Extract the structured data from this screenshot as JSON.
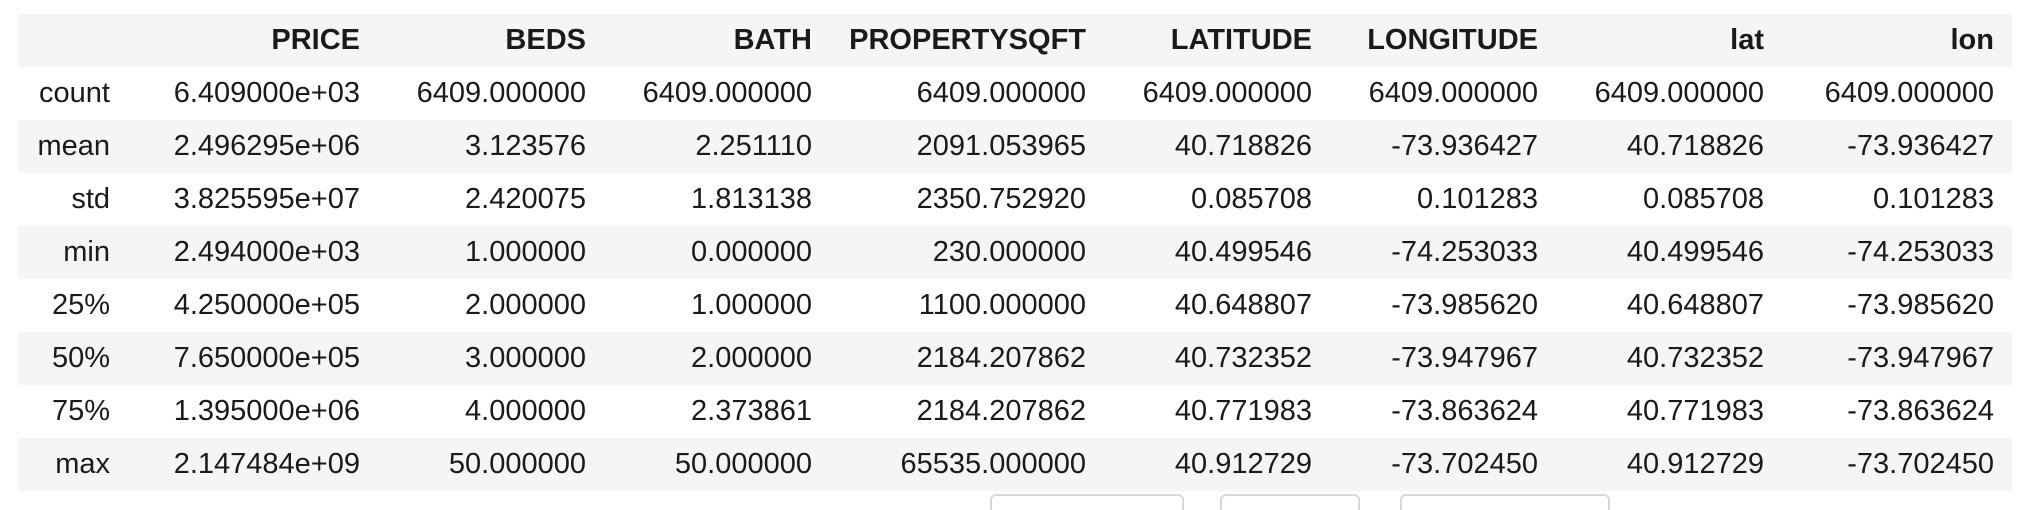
{
  "table": {
    "columns": [
      "",
      "PRICE",
      "BEDS",
      "BATH",
      "PROPERTYSQFT",
      "LATITUDE",
      "LONGITUDE",
      "lat",
      "lon"
    ],
    "rows": [
      {
        "label": "count",
        "values": [
          "6.409000e+03",
          "6409.000000",
          "6409.000000",
          "6409.000000",
          "6409.000000",
          "6409.000000",
          "6409.000000",
          "6409.000000"
        ]
      },
      {
        "label": "mean",
        "values": [
          "2.496295e+06",
          "3.123576",
          "2.251110",
          "2091.053965",
          "40.718826",
          "-73.936427",
          "40.718826",
          "-73.936427"
        ]
      },
      {
        "label": "std",
        "values": [
          "3.825595e+07",
          "2.420075",
          "1.813138",
          "2350.752920",
          "0.085708",
          "0.101283",
          "0.085708",
          "0.101283"
        ]
      },
      {
        "label": "min",
        "values": [
          "2.494000e+03",
          "1.000000",
          "0.000000",
          "230.000000",
          "40.499546",
          "-74.253033",
          "40.499546",
          "-74.253033"
        ]
      },
      {
        "label": "25%",
        "values": [
          "4.250000e+05",
          "2.000000",
          "1.000000",
          "1100.000000",
          "40.648807",
          "-73.985620",
          "40.648807",
          "-73.985620"
        ]
      },
      {
        "label": "50%",
        "values": [
          "7.650000e+05",
          "3.000000",
          "2.000000",
          "2184.207862",
          "40.732352",
          "-73.947967",
          "40.732352",
          "-73.947967"
        ]
      },
      {
        "label": "75%",
        "values": [
          "1.395000e+06",
          "4.000000",
          "2.373861",
          "2184.207862",
          "40.771983",
          "-73.863624",
          "40.771983",
          "-73.863624"
        ]
      },
      {
        "label": "max",
        "values": [
          "2.147484e+09",
          "50.000000",
          "50.000000",
          "65535.000000",
          "40.912729",
          "-73.702450",
          "40.912729",
          "-73.702450"
        ]
      }
    ]
  },
  "colors": {
    "header_bg": "#f5f5f5",
    "stripe_bg": "#f5f5f5",
    "text": "#1a1a1a"
  }
}
